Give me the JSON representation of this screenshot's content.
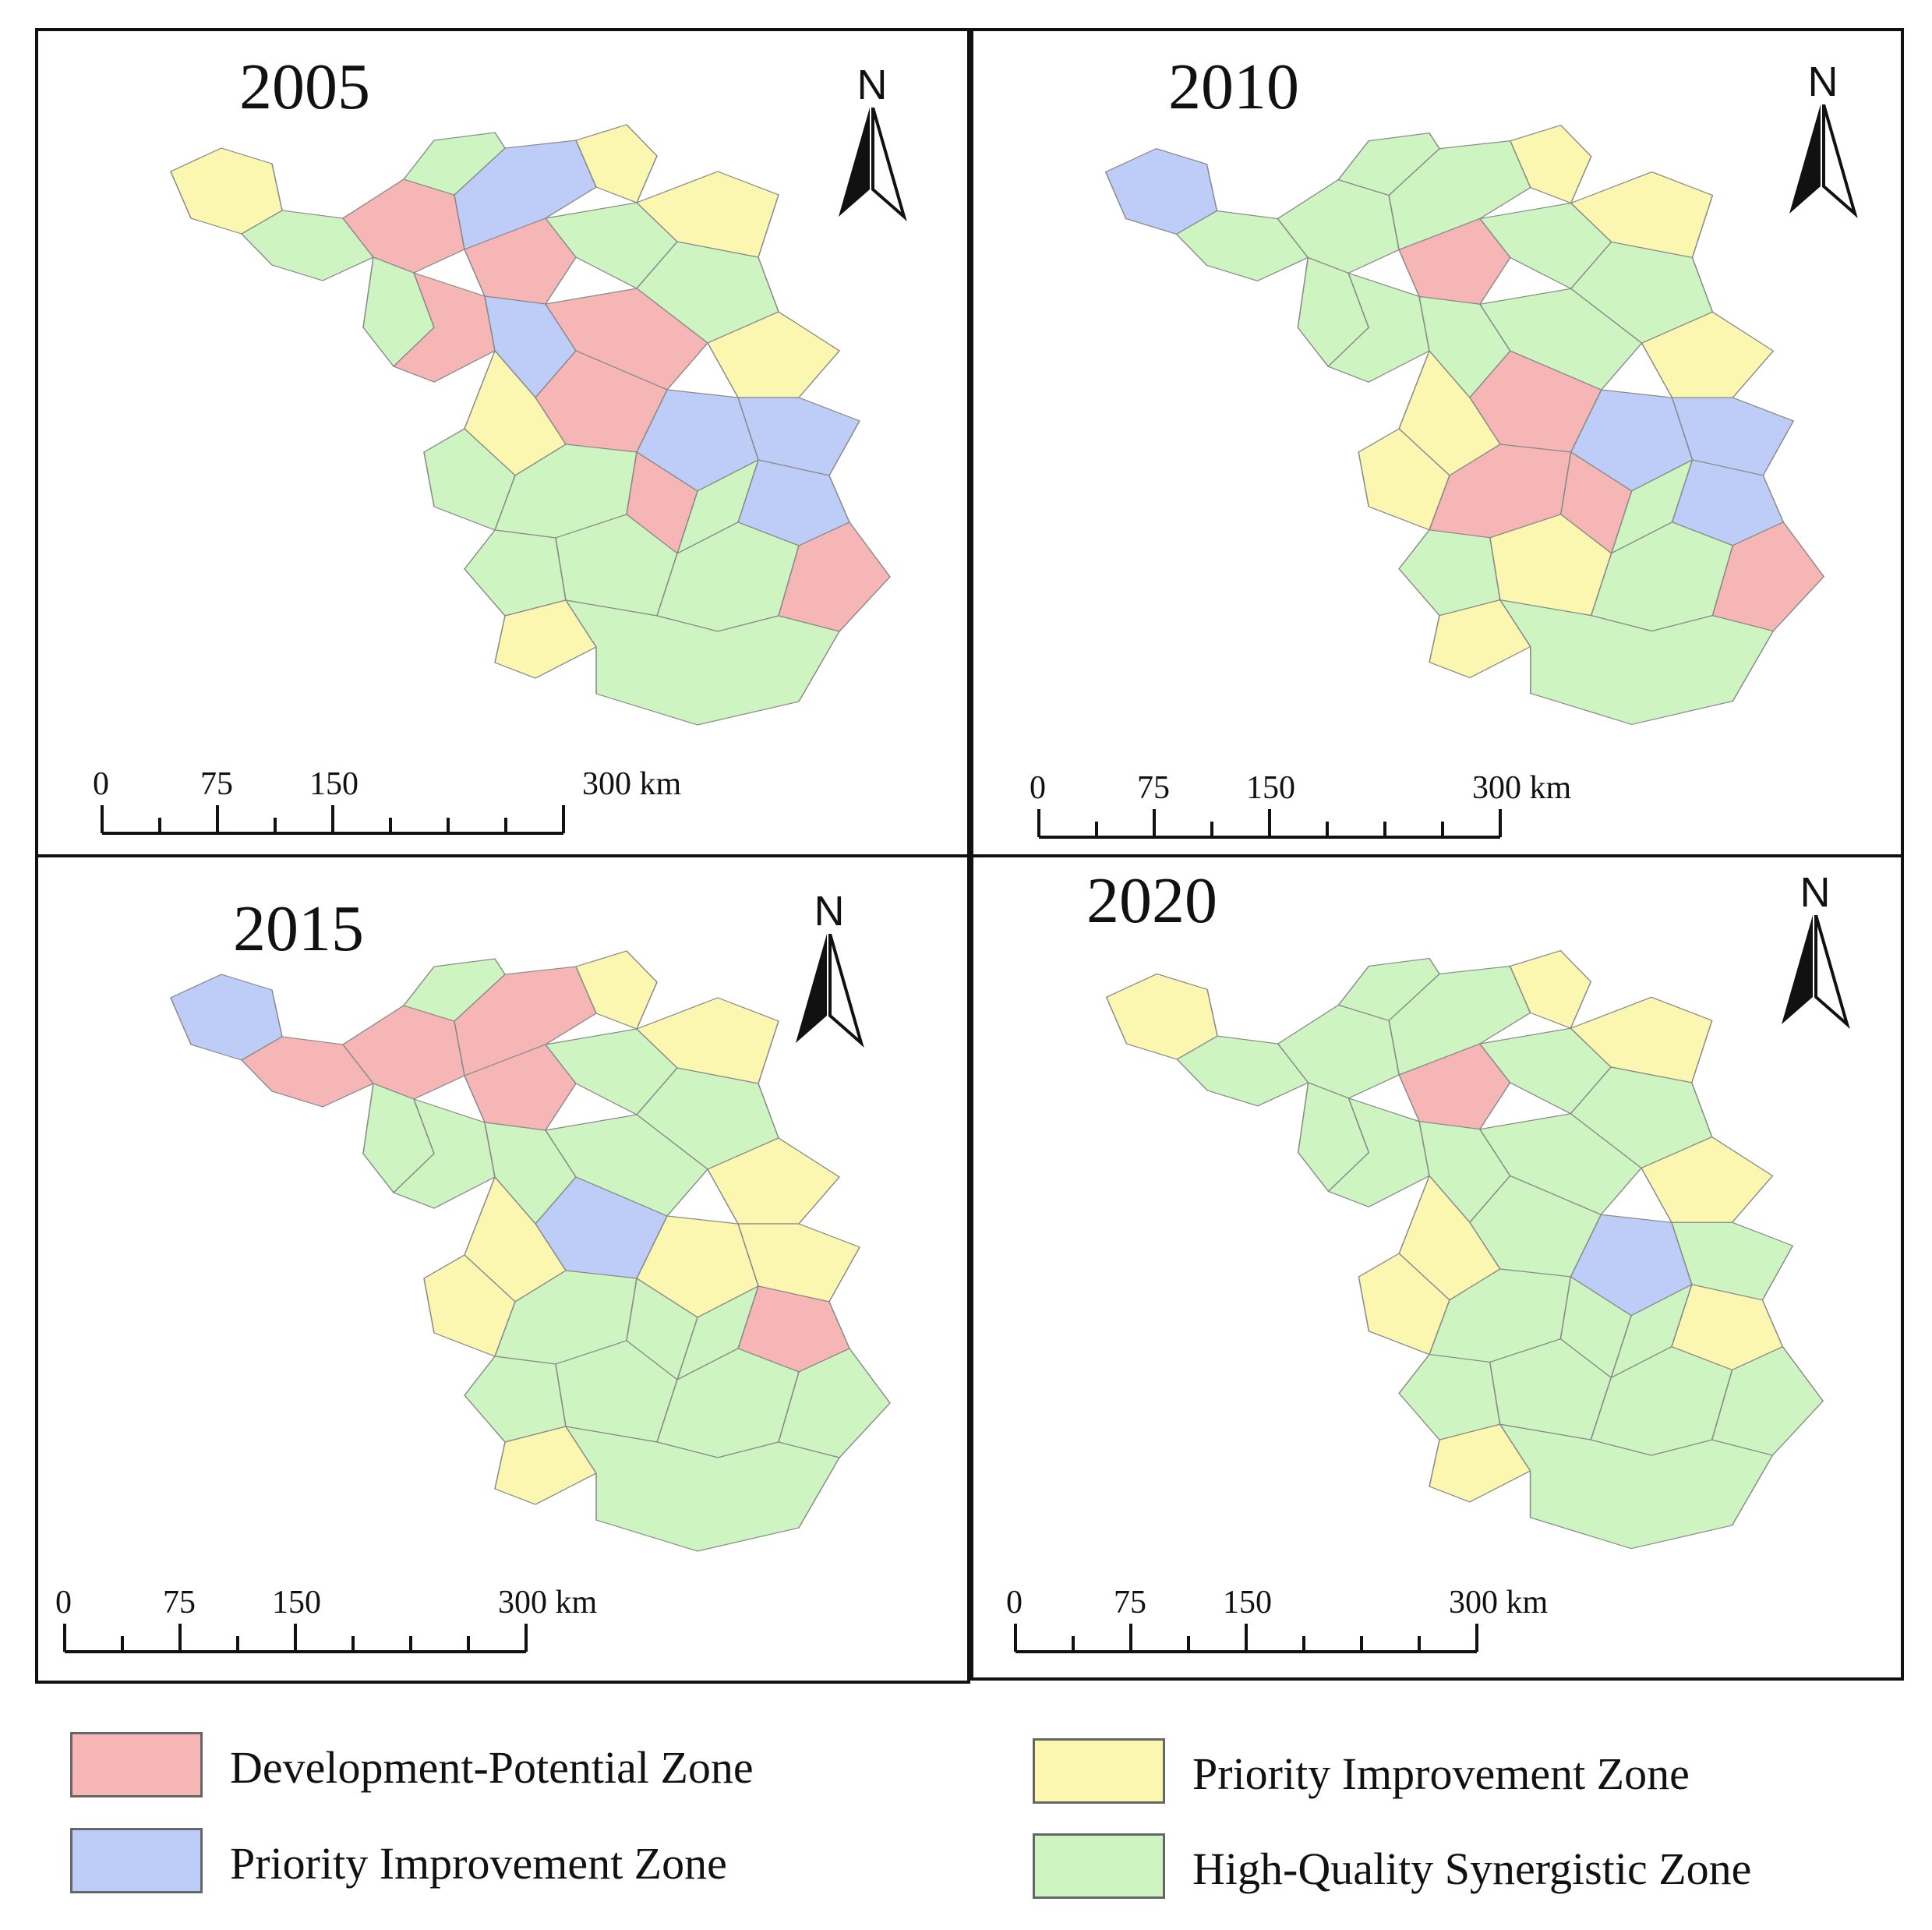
{
  "colors": {
    "development_potential": "#f7b6b6",
    "priority_blue": "#bdcdf7",
    "priority_yellow": "#fbf7b0",
    "high_quality": "#cdf4c1",
    "border": "#8a8a8a"
  },
  "panels": [
    {
      "year": "2005",
      "north_label": "N",
      "scale": {
        "ticks": [
          "0",
          "75",
          "150"
        ],
        "end_label": "300 km"
      },
      "region_zones": [
        "yellow",
        "green",
        "pink",
        "blue",
        "yellow",
        "green",
        "pink",
        "green",
        "yellow",
        "green",
        "green",
        "pink",
        "blue",
        "pink",
        "yellow",
        "blue",
        "blue",
        "pink",
        "blue",
        "green",
        "yellow",
        "green",
        "green",
        "pink",
        "green",
        "green",
        "green",
        "pink",
        "yellow",
        "green"
      ]
    },
    {
      "year": "2010",
      "north_label": "N",
      "scale": {
        "ticks": [
          "0",
          "75",
          "150"
        ],
        "end_label": "300 km"
      },
      "region_zones": [
        "blue",
        "green",
        "green",
        "green",
        "yellow",
        "green",
        "pink",
        "green",
        "yellow",
        "green",
        "green",
        "green",
        "green",
        "green",
        "yellow",
        "blue",
        "blue",
        "pink",
        "blue",
        "green",
        "yellow",
        "yellow",
        "pink",
        "pink",
        "green",
        "yellow",
        "green",
        "pink",
        "yellow",
        "green"
      ]
    },
    {
      "year": "2015",
      "north_label": "N",
      "scale": {
        "ticks": [
          "0",
          "75",
          "150"
        ],
        "end_label": "300 km"
      },
      "region_zones": [
        "blue",
        "pink",
        "pink",
        "pink",
        "yellow",
        "green",
        "pink",
        "green",
        "yellow",
        "green",
        "green",
        "green",
        "green",
        "green",
        "yellow",
        "yellow",
        "yellow",
        "blue",
        "pink",
        "green",
        "yellow",
        "yellow",
        "green",
        "green",
        "green",
        "green",
        "green",
        "green",
        "yellow",
        "green"
      ]
    },
    {
      "year": "2020",
      "north_label": "N",
      "scale": {
        "ticks": [
          "0",
          "75",
          "150"
        ],
        "end_label": "300 km"
      },
      "region_zones": [
        "yellow",
        "green",
        "green",
        "green",
        "yellow",
        "green",
        "pink",
        "green",
        "yellow",
        "green",
        "green",
        "green",
        "green",
        "green",
        "yellow",
        "green",
        "blue",
        "green",
        "yellow",
        "green",
        "yellow",
        "yellow",
        "green",
        "green",
        "green",
        "green",
        "green",
        "green",
        "yellow",
        "green"
      ]
    }
  ],
  "legend": [
    {
      "label": "Development-Potential Zone",
      "color": "#f7b6b6"
    },
    {
      "label": "Priority Improvement Zone",
      "color": "#bdcdf7"
    },
    {
      "label": "Priority Improvement Zone",
      "color": "#fbf7b0"
    },
    {
      "label": "High-Quality Synergistic Zone",
      "color": "#cdf4c1"
    }
  ]
}
